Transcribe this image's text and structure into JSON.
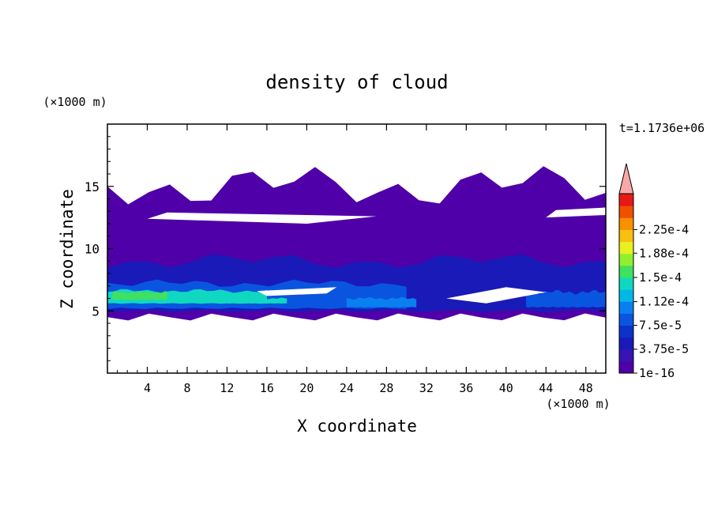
{
  "chart_data": {
    "type": "heatmap",
    "title": "density of cloud",
    "xlabel": "X coordinate",
    "ylabel": "Z coordinate",
    "x_unit": "(×1000 m)",
    "y_unit": "(×1000 m)",
    "time_label": "t=1.1736e+06",
    "xlim": [
      0,
      50
    ],
    "ylim": [
      0,
      20
    ],
    "x_ticks": [
      4,
      8,
      12,
      16,
      20,
      24,
      28,
      32,
      36,
      40,
      44,
      48
    ],
    "y_ticks": [
      5,
      10,
      15
    ],
    "colorbar": {
      "tick_labels": [
        "1e-16",
        "3.75e-5",
        "7.5e-5",
        "1.12e-4",
        "1.5e-4",
        "1.88e-4",
        "2.25e-4"
      ],
      "tick_values": [
        1e-16,
        3.75e-05,
        7.5e-05,
        0.000112,
        0.00015,
        0.000188,
        0.000225
      ],
      "level_colors": [
        "#5000a8",
        "#3814b4",
        "#1a1ab8",
        "#0c32c8",
        "#0a55e0",
        "#0a80f0",
        "#00b8e8",
        "#10d8c0",
        "#40e060",
        "#90f030",
        "#e8f020",
        "#f8c010",
        "#f89000",
        "#f05000",
        "#e81818"
      ],
      "overflow_color": "#f8a8a8"
    },
    "regions": [
      {
        "level": 0,
        "x_min": 0,
        "x_max": 50,
        "z_min": 4.5,
        "z_max": 15.0,
        "note": "cloud envelope with clear gaps near z 12-13 and 6-7"
      },
      {
        "level": 2,
        "x_min": 0,
        "x_max": 50,
        "z_min": 5.0,
        "z_max": 9.0
      },
      {
        "level": 4,
        "x_min": 0,
        "x_max": 30,
        "z_min": 5.2,
        "z_max": 7.2
      },
      {
        "level": 7,
        "x_min": 0,
        "x_max": 16,
        "z_min": 5.6,
        "z_max": 6.6
      },
      {
        "level": 8,
        "x_min": 0.5,
        "x_max": 6,
        "z_min": 5.9,
        "z_max": 6.5
      },
      {
        "level": 7,
        "x_min": 12,
        "x_max": 18,
        "z_min": 5.6,
        "z_max": 6.0
      },
      {
        "level": 4,
        "x_min": 42,
        "x_max": 50,
        "z_min": 5.3,
        "z_max": 6.5
      },
      {
        "level": 5,
        "x_min": 24,
        "x_max": 31,
        "z_min": 5.3,
        "z_max": 6.0
      }
    ]
  }
}
